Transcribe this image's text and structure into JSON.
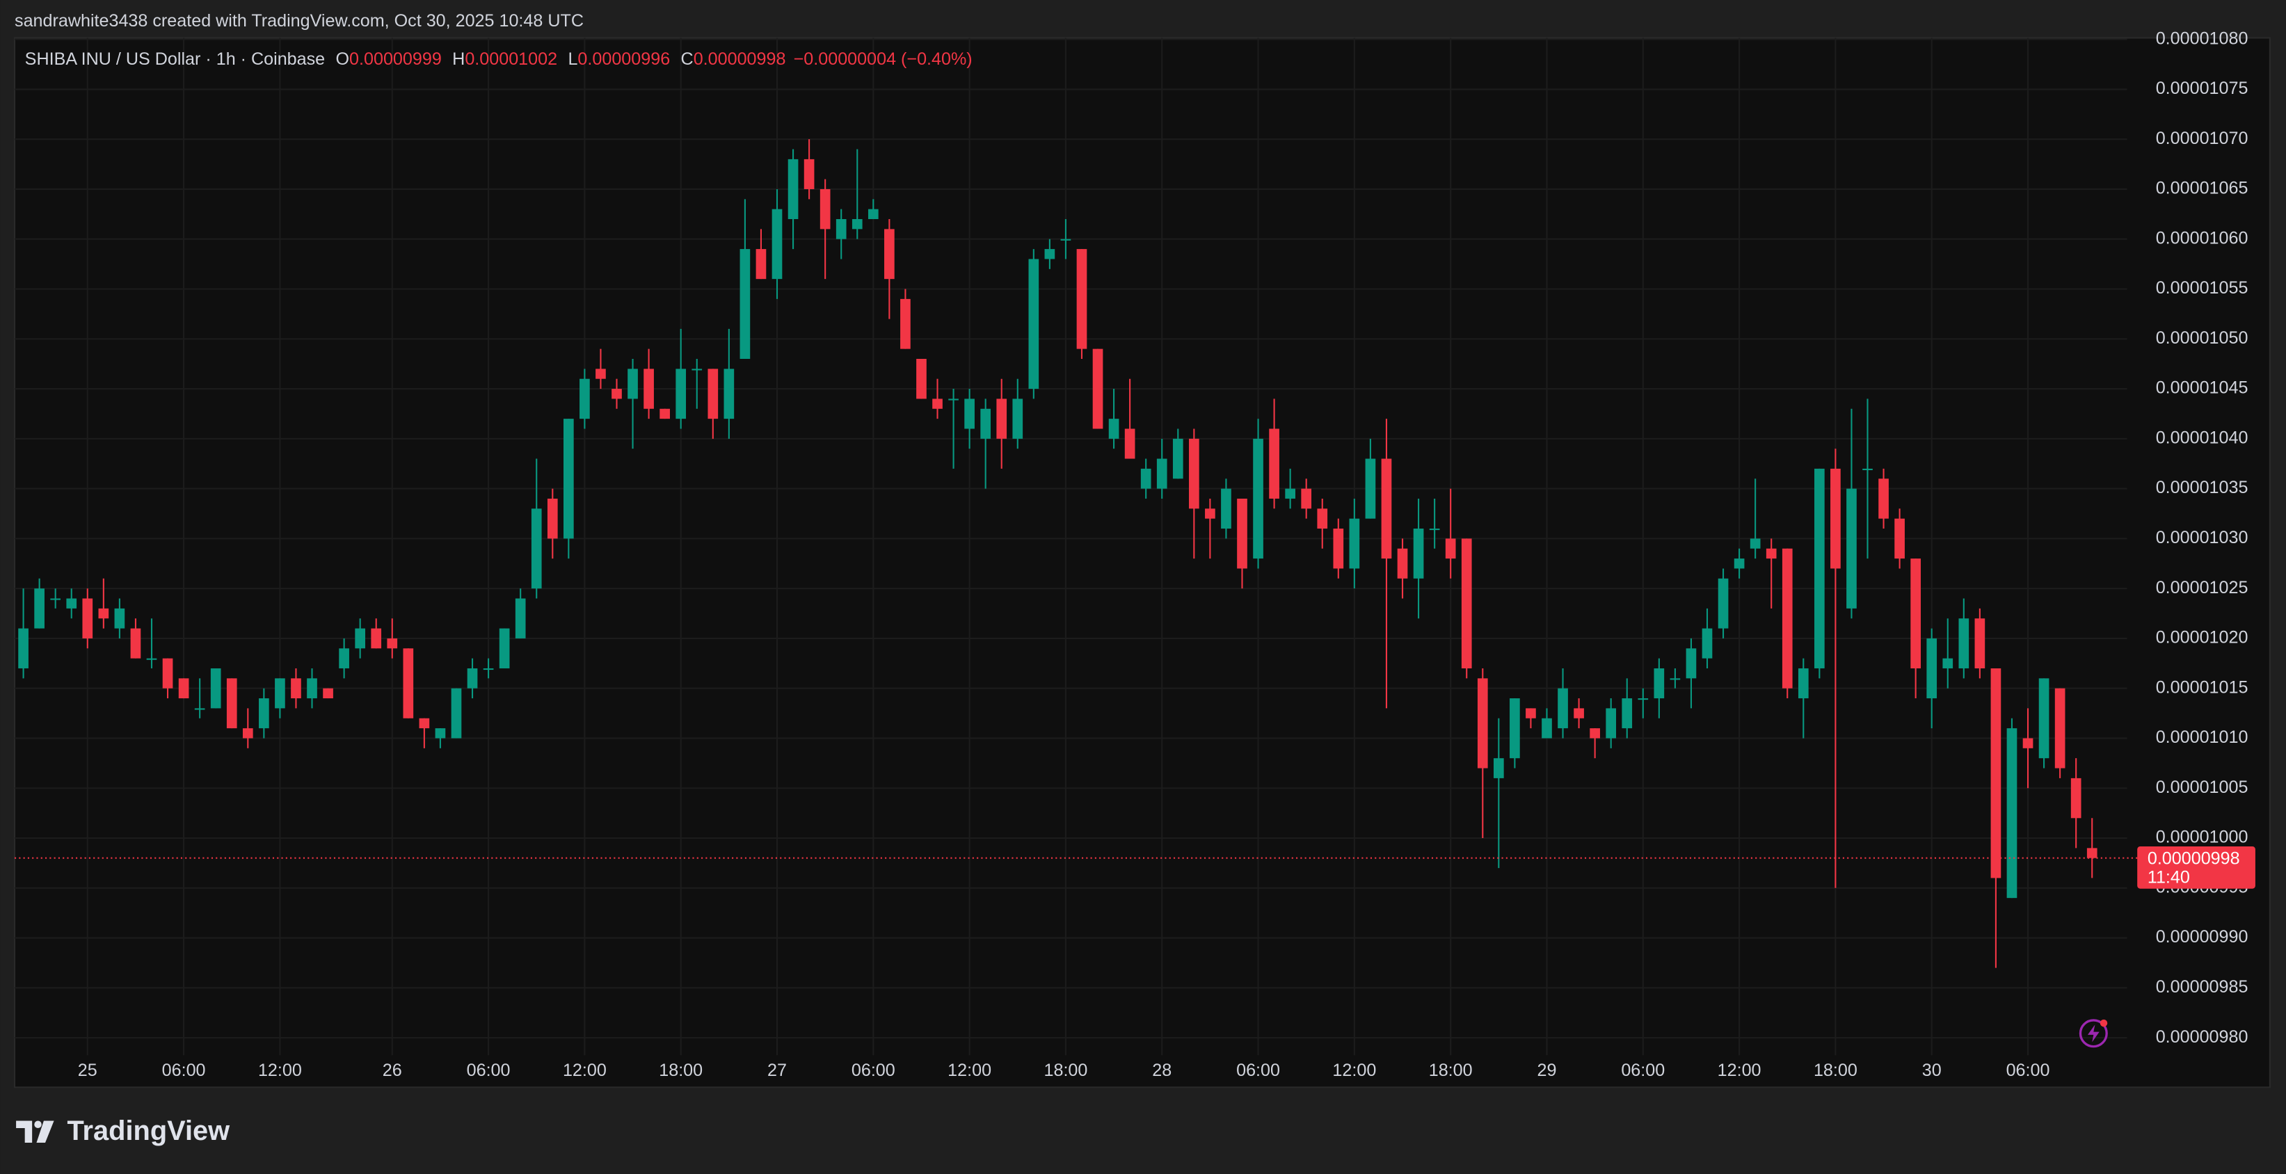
{
  "header": {
    "watermark": "sandrawhite3438 created with TradingView.com, Oct 30, 2025 10:48 UTC",
    "symbol": "SHIBA INU / US Dollar · 1h · Coinbase",
    "ohlc": [
      {
        "label": "O",
        "value": "0.00000999"
      },
      {
        "label": "H",
        "value": "0.00001002"
      },
      {
        "label": "L",
        "value": "0.00000996"
      },
      {
        "label": "C",
        "value": "0.00000998"
      }
    ],
    "change": "−0.00000004 (−0.40%)"
  },
  "chart_data": {
    "type": "candlestick",
    "categories": [
      null,
      null,
      null,
      null,
      "25",
      null,
      null,
      null,
      null,
      null,
      "06:00",
      null,
      null,
      null,
      null,
      null,
      "12:00",
      null,
      null,
      null,
      null,
      null,
      null,
      "26",
      null,
      null,
      null,
      null,
      null,
      "06:00",
      null,
      null,
      null,
      null,
      null,
      "12:00",
      null,
      null,
      null,
      null,
      null,
      "18:00",
      null,
      null,
      null,
      null,
      null,
      "27",
      null,
      null,
      null,
      null,
      null,
      "06:00",
      null,
      null,
      null,
      null,
      null,
      "12:00",
      null,
      null,
      null,
      null,
      null,
      "18:00",
      null,
      null,
      null,
      null,
      null,
      "28",
      null,
      null,
      null,
      null,
      null,
      "06:00",
      null,
      null,
      null,
      null,
      null,
      "12:00",
      null,
      null,
      null,
      null,
      null,
      "18:00",
      null,
      null,
      null,
      null,
      null,
      "29",
      null,
      null,
      null,
      null,
      null,
      "06:00",
      null,
      null,
      null,
      null,
      null,
      "12:00",
      null,
      null,
      null,
      null,
      null,
      "18:00",
      null,
      null,
      null,
      null,
      null,
      "30",
      null,
      null,
      null,
      null,
      null,
      "06:00",
      null,
      null,
      null,
      null
    ],
    "open": [
      1.017e-05,
      1.021e-05,
      1.024e-05,
      1.023e-05,
      1.024e-05,
      1.023e-05,
      1.021e-05,
      1.021e-05,
      1.018e-05,
      1.018e-05,
      1.016e-05,
      1.013e-05,
      1.013e-05,
      1.016e-05,
      1.011e-05,
      1.011e-05,
      1.013e-05,
      1.016e-05,
      1.014e-05,
      1.015e-05,
      1.017e-05,
      1.019e-05,
      1.021e-05,
      1.02e-05,
      1.019e-05,
      1.012e-05,
      1.01e-05,
      1.01e-05,
      1.015e-05,
      1.017e-05,
      1.017e-05,
      1.02e-05,
      1.025e-05,
      1.034e-05,
      1.03e-05,
      1.042e-05,
      1.047e-05,
      1.045e-05,
      1.044e-05,
      1.047e-05,
      1.043e-05,
      1.042e-05,
      1.047e-05,
      1.047e-05,
      1.042e-05,
      1.048e-05,
      1.059e-05,
      1.056e-05,
      1.062e-05,
      1.068e-05,
      1.065e-05,
      1.06e-05,
      1.061e-05,
      1.062e-05,
      1.061e-05,
      1.054e-05,
      1.048e-05,
      1.044e-05,
      1.044e-05,
      1.041e-05,
      1.04e-05,
      1.044e-05,
      1.04e-05,
      1.045e-05,
      1.058e-05,
      1.06e-05,
      1.059e-05,
      1.049e-05,
      1.04e-05,
      1.041e-05,
      1.035e-05,
      1.035e-05,
      1.036e-05,
      1.04e-05,
      1.033e-05,
      1.031e-05,
      1.034e-05,
      1.028e-05,
      1.041e-05,
      1.034e-05,
      1.035e-05,
      1.033e-05,
      1.031e-05,
      1.027e-05,
      1.032e-05,
      1.038e-05,
      1.029e-05,
      1.026e-05,
      1.031e-05,
      1.03e-05,
      1.03e-05,
      1.016e-05,
      1.006e-05,
      1.008e-05,
      1.013e-05,
      1.01e-05,
      1.011e-05,
      1.013e-05,
      1.011e-05,
      1.01e-05,
      1.011e-05,
      1.014e-05,
      1.014e-05,
      1.016e-05,
      1.016e-05,
      1.018e-05,
      1.021e-05,
      1.027e-05,
      1.029e-05,
      1.029e-05,
      1.029e-05,
      1.014e-05,
      1.017e-05,
      1.037e-05,
      1.023e-05,
      1.037e-05,
      1.036e-05,
      1.032e-05,
      1.028e-05,
      1.014e-05,
      1.017e-05,
      1.017e-05,
      1.022e-05,
      1.017e-05,
      9.94e-06,
      1.01e-05,
      1.008e-05,
      1.015e-05,
      1.006e-05,
      9.99e-06
    ],
    "high": [
      1.025e-05,
      1.026e-05,
      1.025e-05,
      1.025e-05,
      1.025e-05,
      1.026e-05,
      1.024e-05,
      1.022e-05,
      1.022e-05,
      1.018e-05,
      1.016e-05,
      1.016e-05,
      1.017e-05,
      1.016e-05,
      1.013e-05,
      1.015e-05,
      1.016e-05,
      1.017e-05,
      1.017e-05,
      1.015e-05,
      1.02e-05,
      1.022e-05,
      1.022e-05,
      1.022e-05,
      1.019e-05,
      1.012e-05,
      1.011e-05,
      1.015e-05,
      1.018e-05,
      1.018e-05,
      1.021e-05,
      1.025e-05,
      1.038e-05,
      1.035e-05,
      1.042e-05,
      1.047e-05,
      1.049e-05,
      1.046e-05,
      1.048e-05,
      1.049e-05,
      1.043e-05,
      1.051e-05,
      1.048e-05,
      1.047e-05,
      1.051e-05,
      1.064e-05,
      1.061e-05,
      1.065e-05,
      1.069e-05,
      1.07e-05,
      1.066e-05,
      1.063e-05,
      1.069e-05,
      1.064e-05,
      1.062e-05,
      1.055e-05,
      1.048e-05,
      1.046e-05,
      1.045e-05,
      1.045e-05,
      1.044e-05,
      1.046e-05,
      1.046e-05,
      1.059e-05,
      1.06e-05,
      1.062e-05,
      1.059e-05,
      1.049e-05,
      1.045e-05,
      1.046e-05,
      1.038e-05,
      1.04e-05,
      1.041e-05,
      1.041e-05,
      1.034e-05,
      1.036e-05,
      1.034e-05,
      1.042e-05,
      1.044e-05,
      1.037e-05,
      1.036e-05,
      1.034e-05,
      1.032e-05,
      1.034e-05,
      1.04e-05,
      1.042e-05,
      1.03e-05,
      1.034e-05,
      1.034e-05,
      1.035e-05,
      1.03e-05,
      1.017e-05,
      1.012e-05,
      1.014e-05,
      1.013e-05,
      1.013e-05,
      1.017e-05,
      1.014e-05,
      1.011e-05,
      1.014e-05,
      1.016e-05,
      1.015e-05,
      1.018e-05,
      1.017e-05,
      1.02e-05,
      1.023e-05,
      1.027e-05,
      1.029e-05,
      1.036e-05,
      1.03e-05,
      1.029e-05,
      1.018e-05,
      1.037e-05,
      1.039e-05,
      1.043e-05,
      1.044e-05,
      1.037e-05,
      1.033e-05,
      1.028e-05,
      1.021e-05,
      1.022e-05,
      1.024e-05,
      1.023e-05,
      1.017e-05,
      1.012e-05,
      1.013e-05,
      1.016e-05,
      1.015e-05,
      1.008e-05,
      1.002e-05
    ],
    "low": [
      1.016e-05,
      1.021e-05,
      1.023e-05,
      1.022e-05,
      1.019e-05,
      1.021e-05,
      1.02e-05,
      1.018e-05,
      1.017e-05,
      1.014e-05,
      1.014e-05,
      1.012e-05,
      1.013e-05,
      1.011e-05,
      1.009e-05,
      1.01e-05,
      1.012e-05,
      1.013e-05,
      1.013e-05,
      1.014e-05,
      1.016e-05,
      1.018e-05,
      1.019e-05,
      1.018e-05,
      1.012e-05,
      1.009e-05,
      1.009e-05,
      1.01e-05,
      1.014e-05,
      1.016e-05,
      1.017e-05,
      1.02e-05,
      1.024e-05,
      1.028e-05,
      1.028e-05,
      1.041e-05,
      1.045e-05,
      1.043e-05,
      1.039e-05,
      1.042e-05,
      1.042e-05,
      1.041e-05,
      1.043e-05,
      1.04e-05,
      1.04e-05,
      1.048e-05,
      1.056e-05,
      1.054e-05,
      1.059e-05,
      1.064e-05,
      1.056e-05,
      1.058e-05,
      1.06e-05,
      1.062e-05,
      1.052e-05,
      1.049e-05,
      1.044e-05,
      1.042e-05,
      1.037e-05,
      1.039e-05,
      1.035e-05,
      1.037e-05,
      1.039e-05,
      1.044e-05,
      1.057e-05,
      1.058e-05,
      1.048e-05,
      1.041e-05,
      1.039e-05,
      1.038e-05,
      1.034e-05,
      1.034e-05,
      1.036e-05,
      1.028e-05,
      1.028e-05,
      1.03e-05,
      1.025e-05,
      1.027e-05,
      1.033e-05,
      1.033e-05,
      1.032e-05,
      1.029e-05,
      1.026e-05,
      1.025e-05,
      1.032e-05,
      1.013e-05,
      1.024e-05,
      1.022e-05,
      1.029e-05,
      1.026e-05,
      1.016e-05,
      1e-05,
      9.97e-06,
      1.007e-05,
      1.011e-05,
      1.01e-05,
      1.01e-05,
      1.011e-05,
      1.008e-05,
      1.009e-05,
      1.01e-05,
      1.012e-05,
      1.012e-05,
      1.015e-05,
      1.013e-05,
      1.017e-05,
      1.02e-05,
      1.026e-05,
      1.028e-05,
      1.023e-05,
      1.014e-05,
      1.01e-05,
      1.016e-05,
      9.95e-06,
      1.022e-05,
      1.028e-05,
      1.031e-05,
      1.027e-05,
      1.014e-05,
      1.011e-05,
      1.015e-05,
      1.016e-05,
      1.016e-05,
      9.87e-06,
      9.94e-06,
      1.005e-05,
      1.007e-05,
      1.006e-05,
      9.99e-06,
      9.96e-06
    ],
    "close": [
      1.021e-05,
      1.025e-05,
      1.024e-05,
      1.024e-05,
      1.02e-05,
      1.022e-05,
      1.023e-05,
      1.018e-05,
      1.018e-05,
      1.015e-05,
      1.014e-05,
      1.013e-05,
      1.017e-05,
      1.011e-05,
      1.01e-05,
      1.014e-05,
      1.016e-05,
      1.014e-05,
      1.016e-05,
      1.014e-05,
      1.019e-05,
      1.021e-05,
      1.019e-05,
      1.019e-05,
      1.012e-05,
      1.011e-05,
      1.011e-05,
      1.015e-05,
      1.017e-05,
      1.017e-05,
      1.021e-05,
      1.024e-05,
      1.033e-05,
      1.03e-05,
      1.042e-05,
      1.046e-05,
      1.046e-05,
      1.044e-05,
      1.047e-05,
      1.043e-05,
      1.042e-05,
      1.047e-05,
      1.047e-05,
      1.042e-05,
      1.047e-05,
      1.059e-05,
      1.056e-05,
      1.063e-05,
      1.068e-05,
      1.065e-05,
      1.061e-05,
      1.062e-05,
      1.062e-05,
      1.063e-05,
      1.056e-05,
      1.049e-05,
      1.044e-05,
      1.043e-05,
      1.044e-05,
      1.044e-05,
      1.043e-05,
      1.04e-05,
      1.044e-05,
      1.058e-05,
      1.059e-05,
      1.06e-05,
      1.049e-05,
      1.041e-05,
      1.042e-05,
      1.038e-05,
      1.037e-05,
      1.038e-05,
      1.04e-05,
      1.033e-05,
      1.032e-05,
      1.035e-05,
      1.027e-05,
      1.04e-05,
      1.034e-05,
      1.035e-05,
      1.033e-05,
      1.031e-05,
      1.027e-05,
      1.032e-05,
      1.038e-05,
      1.028e-05,
      1.026e-05,
      1.031e-05,
      1.031e-05,
      1.028e-05,
      1.017e-05,
      1.007e-05,
      1.008e-05,
      1.014e-05,
      1.012e-05,
      1.012e-05,
      1.015e-05,
      1.012e-05,
      1.01e-05,
      1.013e-05,
      1.014e-05,
      1.014e-05,
      1.017e-05,
      1.016e-05,
      1.019e-05,
      1.021e-05,
      1.026e-05,
      1.028e-05,
      1.03e-05,
      1.028e-05,
      1.015e-05,
      1.017e-05,
      1.037e-05,
      1.027e-05,
      1.035e-05,
      1.037e-05,
      1.032e-05,
      1.028e-05,
      1.017e-05,
      1.02e-05,
      1.018e-05,
      1.022e-05,
      1.017e-05,
      9.96e-06,
      1.011e-05,
      1.009e-05,
      1.016e-05,
      1.007e-05,
      1.002e-05,
      9.98e-06
    ],
    "up_color": "#089981",
    "down_color": "#f23645",
    "ylim": [
      9.7504e-06,
      1.08015e-05
    ],
    "yticks": [
      {
        "value": 1.08e-05,
        "label": "0.00001080"
      },
      {
        "value": 1.075e-05,
        "label": "0.00001075"
      },
      {
        "value": 1.07e-05,
        "label": "0.00001070"
      },
      {
        "value": 1.065e-05,
        "label": "0.00001065"
      },
      {
        "value": 1.06e-05,
        "label": "0.00001060"
      },
      {
        "value": 1.055e-05,
        "label": "0.00001055"
      },
      {
        "value": 1.05e-05,
        "label": "0.00001050"
      },
      {
        "value": 1.045e-05,
        "label": "0.00001045"
      },
      {
        "value": 1.04e-05,
        "label": "0.00001040"
      },
      {
        "value": 1.035e-05,
        "label": "0.00001035"
      },
      {
        "value": 1.03e-05,
        "label": "0.00001030"
      },
      {
        "value": 1.025e-05,
        "label": "0.00001025"
      },
      {
        "value": 1.02e-05,
        "label": "0.00001020"
      },
      {
        "value": 1.015e-05,
        "label": "0.00001015"
      },
      {
        "value": 1.01e-05,
        "label": "0.00001010"
      },
      {
        "value": 1.005e-05,
        "label": "0.00001005"
      },
      {
        "value": 1e-05,
        "label": "0.00001000"
      },
      {
        "value": 9.95e-06,
        "label": "0.00000995"
      },
      {
        "value": 9.9e-06,
        "label": "0.00000990"
      },
      {
        "value": 9.85e-06,
        "label": "0.00000985"
      },
      {
        "value": 9.8e-06,
        "label": "0.00000980"
      }
    ],
    "grid": true,
    "last_price_label": "0.00000998",
    "countdown": "11:40"
  },
  "footer": {
    "logo": "TradingView"
  }
}
